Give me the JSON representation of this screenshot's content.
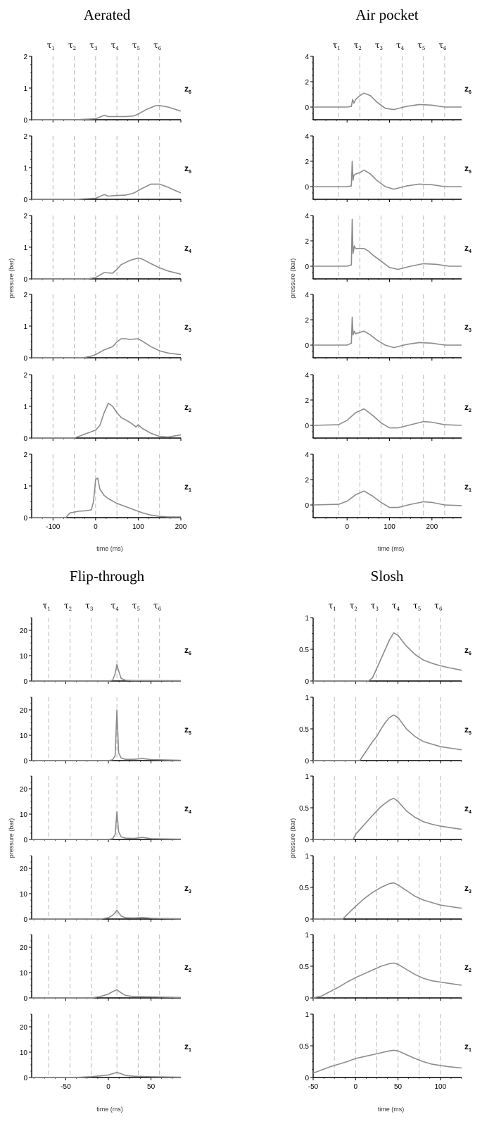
{
  "chart_data": [
    {
      "type": "line",
      "title": "Aerated",
      "xlabel": "time (ms)",
      "ylabel": "pressure (bar)",
      "xlim": [
        -150,
        200
      ],
      "ylim": [
        0,
        2
      ],
      "xticks": [
        -100,
        0,
        100,
        200
      ],
      "xtick_labels": [
        "-100",
        "0",
        "100",
        "200"
      ],
      "yticks": [
        0,
        1,
        2
      ],
      "ytick_labels": [
        "0",
        "1",
        "2"
      ],
      "tau_labels": [
        "τ1",
        "τ2",
        "τ3",
        "τ4",
        "τ5",
        "τ6"
      ],
      "tau_times": [
        -100,
        -50,
        0,
        50,
        100,
        150
      ],
      "series": [
        {
          "label": "z6",
          "x": [
            -150,
            -50,
            0,
            20,
            30,
            50,
            70,
            90,
            100,
            120,
            140,
            150,
            170,
            200
          ],
          "y": [
            0,
            0,
            0.03,
            0.14,
            0.1,
            0.1,
            0.1,
            0.12,
            0.18,
            0.33,
            0.44,
            0.45,
            0.4,
            0.27
          ]
        },
        {
          "label": "z5",
          "x": [
            -150,
            -50,
            0,
            20,
            30,
            50,
            70,
            90,
            110,
            130,
            150,
            170,
            200
          ],
          "y": [
            0,
            0,
            0.03,
            0.15,
            0.1,
            0.12,
            0.13,
            0.2,
            0.35,
            0.48,
            0.48,
            0.38,
            0.2
          ]
        },
        {
          "label": "z4",
          "x": [
            -150,
            -20,
            0,
            20,
            40,
            50,
            60,
            80,
            100,
            110,
            130,
            150,
            170,
            200
          ],
          "y": [
            0,
            0,
            0.04,
            0.2,
            0.18,
            0.3,
            0.45,
            0.58,
            0.66,
            0.62,
            0.48,
            0.35,
            0.25,
            0.15
          ]
        },
        {
          "label": "z3",
          "x": [
            -150,
            -30,
            -10,
            0,
            20,
            40,
            50,
            60,
            70,
            80,
            100,
            110,
            130,
            150,
            170,
            200
          ],
          "y": [
            0,
            0,
            0.05,
            0.1,
            0.25,
            0.35,
            0.5,
            0.6,
            0.6,
            0.58,
            0.6,
            0.52,
            0.35,
            0.22,
            0.15,
            0.1
          ]
        },
        {
          "label": "z2",
          "x": [
            -150,
            -50,
            -20,
            0,
            10,
            20,
            30,
            40,
            50,
            60,
            80,
            95,
            100,
            110,
            130,
            150,
            170,
            200
          ],
          "y": [
            0,
            0,
            0.15,
            0.25,
            0.4,
            0.8,
            1.1,
            1.0,
            0.8,
            0.65,
            0.5,
            0.35,
            0.42,
            0.3,
            0.15,
            0.05,
            0.03,
            0.1
          ]
        },
        {
          "label": "z1",
          "x": [
            -150,
            -70,
            -60,
            -40,
            -20,
            -10,
            -5,
            0,
            5,
            10,
            20,
            30,
            50,
            70,
            90,
            110,
            130,
            150,
            170,
            200
          ],
          "y": [
            0,
            0,
            0.15,
            0.2,
            0.22,
            0.25,
            0.5,
            1.2,
            1.25,
            0.9,
            0.7,
            0.6,
            0.45,
            0.35,
            0.25,
            0.15,
            0.08,
            0.04,
            0.02,
            0.02
          ]
        }
      ]
    },
    {
      "type": "line",
      "title": "Air pocket",
      "xlabel": "time (ms)",
      "ylabel": "pressure (bar)",
      "xlim": [
        -80,
        270
      ],
      "ylim": [
        -1,
        4
      ],
      "xticks": [
        0,
        100,
        200
      ],
      "xtick_labels": [
        "0",
        "100",
        "200"
      ],
      "yticks": [
        0,
        2,
        4
      ],
      "ytick_labels": [
        "0",
        "2",
        "4"
      ],
      "tau_labels": [
        "τ1",
        "τ2",
        "τ3",
        "τ4",
        "τ5",
        "τ6"
      ],
      "tau_times": [
        -20,
        30,
        80,
        130,
        180,
        230
      ],
      "series": [
        {
          "label": "z6",
          "x": [
            -80,
            0,
            10,
            13,
            16,
            20,
            30,
            40,
            55,
            70,
            90,
            110,
            140,
            170,
            200,
            230,
            270
          ],
          "y": [
            0,
            0,
            0.05,
            0.6,
            0.3,
            0.6,
            0.9,
            1.1,
            0.9,
            0.4,
            -0.1,
            -0.2,
            0.05,
            0.2,
            0.15,
            0.0,
            0.0
          ]
        },
        {
          "label": "z5",
          "x": [
            -80,
            0,
            10,
            12,
            14,
            16,
            20,
            30,
            40,
            55,
            70,
            90,
            110,
            140,
            170,
            200,
            230,
            270
          ],
          "y": [
            0,
            0,
            0.05,
            2.0,
            0.5,
            0.9,
            1.0,
            1.1,
            1.3,
            1.0,
            0.5,
            0.0,
            -0.2,
            0.05,
            0.2,
            0.15,
            0.0,
            0.0
          ]
        },
        {
          "label": "z4",
          "x": [
            -80,
            0,
            10,
            12,
            14,
            17,
            20,
            30,
            40,
            50,
            60,
            80,
            100,
            120,
            150,
            180,
            210,
            240,
            270
          ],
          "y": [
            0,
            0,
            0.1,
            3.7,
            1.0,
            1.6,
            1.4,
            1.4,
            1.4,
            1.2,
            0.9,
            0.4,
            -0.1,
            -0.25,
            0.0,
            0.2,
            0.15,
            0.0,
            0.0
          ]
        },
        {
          "label": "z3",
          "x": [
            -80,
            0,
            10,
            12,
            14,
            17,
            20,
            30,
            40,
            55,
            70,
            90,
            110,
            140,
            170,
            200,
            230,
            270
          ],
          "y": [
            0,
            0,
            0.15,
            2.2,
            0.8,
            1.1,
            0.9,
            1.0,
            1.1,
            0.8,
            0.4,
            0.0,
            -0.2,
            0.05,
            0.2,
            0.15,
            0.0,
            0.0
          ]
        },
        {
          "label": "z2",
          "x": [
            -80,
            -20,
            0,
            20,
            40,
            60,
            80,
            100,
            120,
            150,
            180,
            200,
            230,
            270
          ],
          "y": [
            0,
            0.05,
            0.4,
            1.0,
            1.3,
            0.8,
            0.2,
            -0.2,
            -0.2,
            0.05,
            0.3,
            0.25,
            0.05,
            0.0
          ]
        },
        {
          "label": "z1",
          "x": [
            -80,
            -20,
            0,
            20,
            40,
            60,
            80,
            100,
            120,
            150,
            180,
            200,
            230,
            270
          ],
          "y": [
            0,
            0.05,
            0.3,
            0.8,
            1.1,
            0.7,
            0.2,
            -0.2,
            -0.2,
            0.05,
            0.25,
            0.2,
            0.0,
            -0.05
          ]
        }
      ]
    },
    {
      "type": "line",
      "title": "Flip-through",
      "xlabel": "time (ms)",
      "ylabel": "pressure (bar)",
      "xlim": [
        -90,
        85
      ],
      "ylim": [
        0,
        25
      ],
      "xticks": [
        -50,
        0,
        50
      ],
      "xtick_labels": [
        "-50",
        "0",
        "50"
      ],
      "yticks": [
        0,
        10,
        20
      ],
      "ytick_labels": [
        "0",
        "10",
        "20"
      ],
      "tau_labels": [
        "τ1",
        "τ2",
        "τ3",
        "τ4",
        "τ5",
        "τ6"
      ],
      "tau_times": [
        -70,
        -45,
        -20,
        10,
        35,
        60
      ],
      "series": [
        {
          "label": "z6",
          "x": [
            -90,
            0,
            5,
            8,
            10,
            12,
            15,
            20,
            30,
            40,
            85
          ],
          "y": [
            0,
            0,
            0.3,
            3,
            6.5,
            4,
            1,
            0.3,
            0.2,
            0.2,
            0.1
          ]
        },
        {
          "label": "z5",
          "x": [
            -90,
            0,
            5,
            8,
            10,
            12,
            15,
            20,
            30,
            40,
            50,
            85
          ],
          "y": [
            0,
            0,
            0.3,
            2,
            20,
            3,
            1,
            0.5,
            0.5,
            0.8,
            0.4,
            0.1
          ]
        },
        {
          "label": "z4",
          "x": [
            -90,
            0,
            5,
            8,
            10,
            12,
            15,
            20,
            30,
            40,
            50,
            85
          ],
          "y": [
            0,
            0,
            0.3,
            2,
            11,
            3,
            1,
            0.5,
            0.4,
            0.8,
            0.3,
            0.1
          ]
        },
        {
          "label": "z3",
          "x": [
            -90,
            -10,
            0,
            5,
            8,
            10,
            12,
            15,
            20,
            30,
            40,
            50,
            85
          ],
          "y": [
            0,
            0,
            0.5,
            1.5,
            2.5,
            3.5,
            2.5,
            1.2,
            0.5,
            0.4,
            0.6,
            0.3,
            0.1
          ]
        },
        {
          "label": "z2",
          "x": [
            -90,
            -20,
            -10,
            0,
            5,
            10,
            15,
            20,
            30,
            40,
            50,
            85
          ],
          "y": [
            0,
            0,
            0.5,
            1.5,
            2.5,
            3.2,
            2.0,
            1.0,
            0.5,
            0.5,
            0.4,
            0.2
          ]
        },
        {
          "label": "z1",
          "x": [
            -90,
            -40,
            -20,
            0,
            5,
            10,
            15,
            20,
            30,
            40,
            50,
            85
          ],
          "y": [
            0,
            0,
            0.3,
            1.0,
            1.5,
            2.0,
            1.5,
            0.8,
            0.5,
            0.4,
            0.3,
            0.1
          ]
        }
      ]
    },
    {
      "type": "line",
      "title": "Slosh",
      "xlabel": "time (ms)",
      "ylabel": "pressure (bar)",
      "xlim": [
        -50,
        125
      ],
      "ylim": [
        0,
        1
      ],
      "xticks": [
        -50,
        0,
        50,
        100
      ],
      "xtick_labels": [
        "-50",
        "0",
        "50",
        "100"
      ],
      "yticks": [
        0,
        0.5,
        1
      ],
      "ytick_labels": [
        "0",
        "0.5",
        "1"
      ],
      "tau_labels": [
        "τ1",
        "τ2",
        "τ3",
        "τ4",
        "τ5",
        "τ6"
      ],
      "tau_times": [
        -25,
        0,
        25,
        50,
        75,
        100
      ],
      "series": [
        {
          "label": "z6",
          "x": [
            -50,
            15,
            20,
            25,
            30,
            35,
            40,
            45,
            50,
            60,
            70,
            80,
            90,
            100,
            110,
            125
          ],
          "y": [
            0,
            0,
            0.05,
            0.2,
            0.35,
            0.5,
            0.65,
            0.76,
            0.72,
            0.55,
            0.42,
            0.33,
            0.28,
            0.24,
            0.21,
            0.17
          ]
        },
        {
          "label": "z5",
          "x": [
            -50,
            5,
            10,
            15,
            20,
            25,
            30,
            35,
            40,
            45,
            50,
            60,
            70,
            80,
            90,
            100,
            110,
            125
          ],
          "y": [
            0,
            0,
            0.1,
            0.2,
            0.3,
            0.38,
            0.5,
            0.6,
            0.68,
            0.72,
            0.68,
            0.5,
            0.38,
            0.3,
            0.26,
            0.22,
            0.2,
            0.17
          ]
        },
        {
          "label": "z4",
          "x": [
            -50,
            -3,
            0,
            10,
            20,
            30,
            40,
            45,
            50,
            60,
            70,
            80,
            90,
            100,
            110,
            125
          ],
          "y": [
            0,
            0,
            0.08,
            0.23,
            0.38,
            0.52,
            0.62,
            0.65,
            0.6,
            0.45,
            0.35,
            0.28,
            0.24,
            0.21,
            0.19,
            0.16
          ]
        },
        {
          "label": "z3",
          "x": [
            -50,
            -15,
            -10,
            0,
            10,
            20,
            30,
            40,
            45,
            50,
            60,
            70,
            80,
            90,
            100,
            110,
            125
          ],
          "y": [
            0,
            0,
            0.07,
            0.2,
            0.32,
            0.42,
            0.5,
            0.56,
            0.57,
            0.54,
            0.45,
            0.36,
            0.3,
            0.26,
            0.22,
            0.2,
            0.17
          ]
        },
        {
          "label": "z2",
          "x": [
            -50,
            -40,
            -30,
            -20,
            -10,
            0,
            10,
            20,
            30,
            40,
            45,
            50,
            60,
            70,
            80,
            90,
            100,
            110,
            125
          ],
          "y": [
            0,
            0.03,
            0.1,
            0.17,
            0.25,
            0.32,
            0.38,
            0.44,
            0.5,
            0.54,
            0.55,
            0.53,
            0.45,
            0.37,
            0.31,
            0.27,
            0.25,
            0.23,
            0.2
          ]
        },
        {
          "label": "z1",
          "x": [
            -50,
            -40,
            -30,
            -20,
            -10,
            0,
            10,
            20,
            30,
            40,
            45,
            50,
            60,
            70,
            80,
            90,
            100,
            110,
            125
          ],
          "y": [
            0.07,
            0.12,
            0.17,
            0.21,
            0.25,
            0.3,
            0.33,
            0.36,
            0.39,
            0.42,
            0.43,
            0.42,
            0.36,
            0.3,
            0.25,
            0.21,
            0.19,
            0.17,
            0.15
          ]
        }
      ]
    }
  ]
}
